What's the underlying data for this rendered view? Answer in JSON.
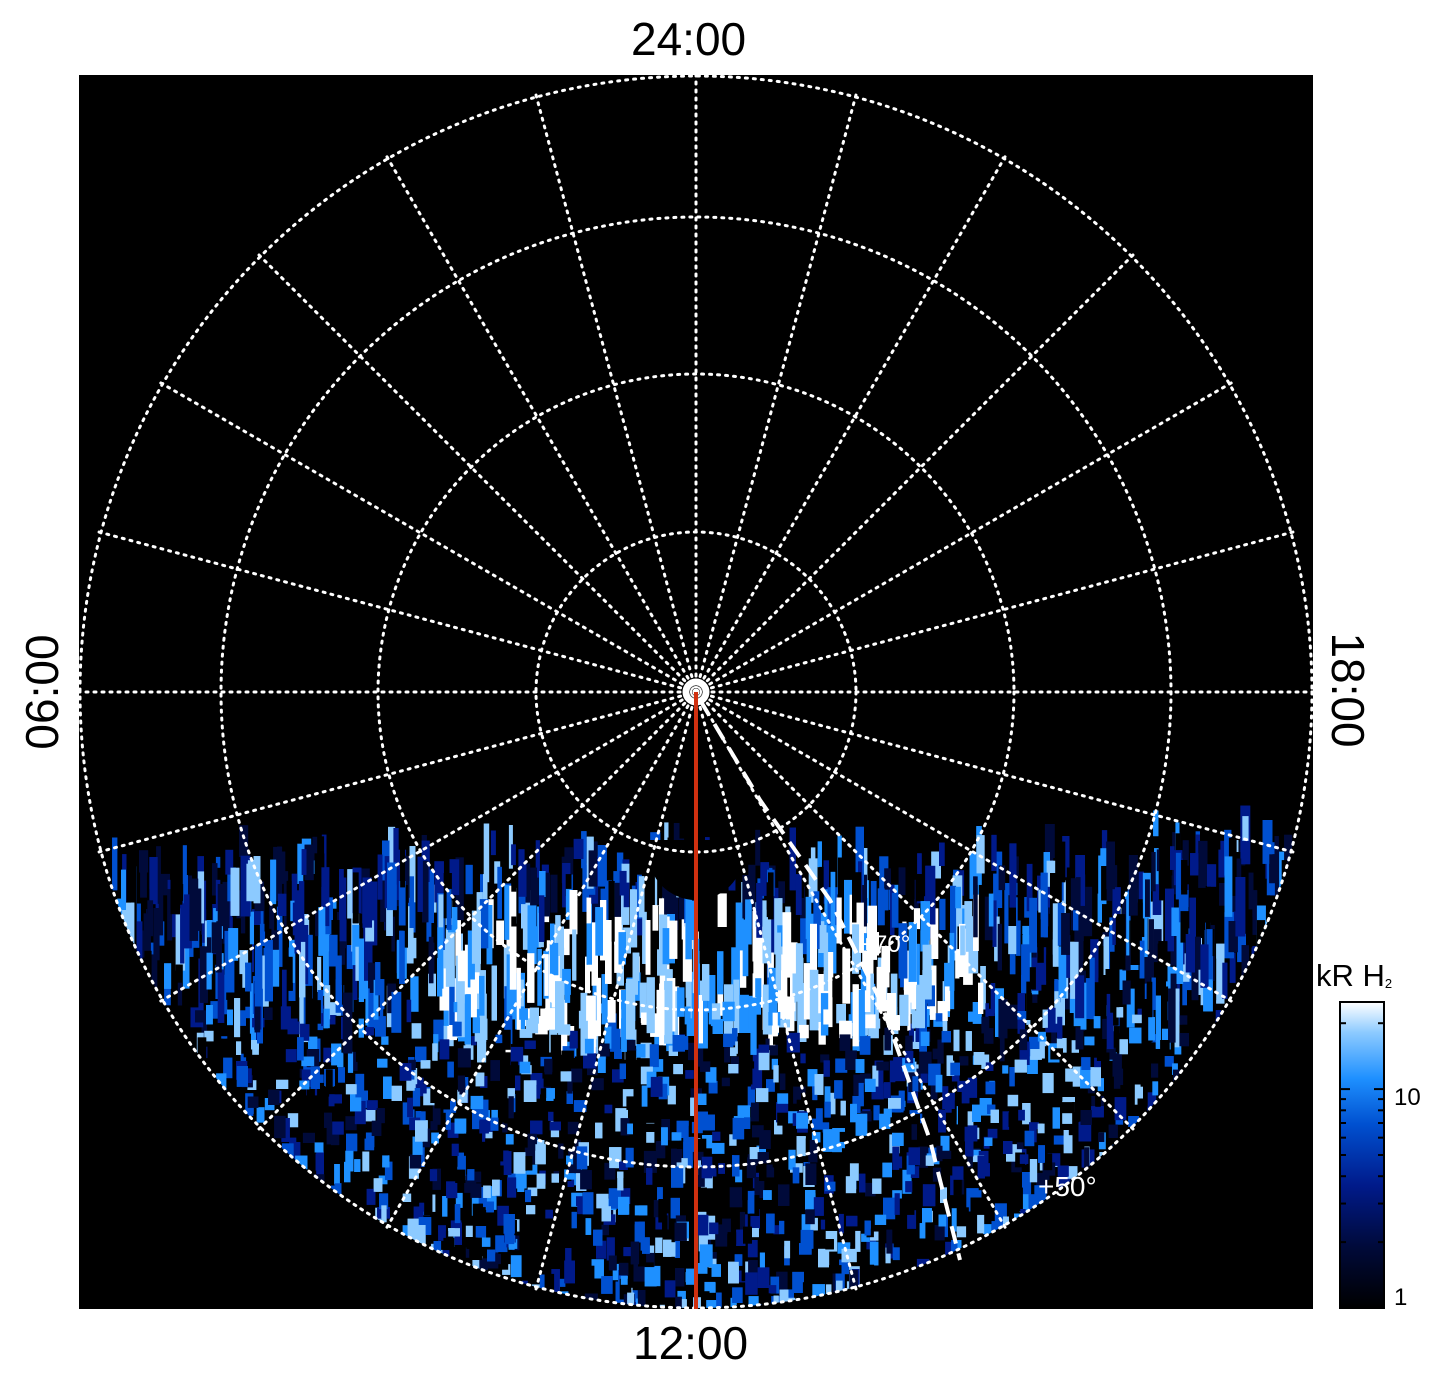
{
  "chart_data": {
    "type": "heatmap",
    "projection": "polar",
    "description_axes": "local time around pole, latitude rings",
    "local_time_labels": {
      "top": "24:00",
      "bottom": "12:00",
      "left": "06:00",
      "right": "18:00"
    },
    "latitude_labels": [
      "+70°",
      "+50°"
    ],
    "colorbar": {
      "title": "kR H",
      "title_subscript": "2",
      "scale": "log",
      "range": [
        1,
        25
      ],
      "ticks": [
        {
          "value": 10,
          "label": "10"
        },
        {
          "value": 1,
          "label": "1"
        }
      ],
      "colors": [
        "#000000",
        "#000a3a",
        "#001a8a",
        "#0050d0",
        "#1e90ff",
        "#8ccaff",
        "#ffffff"
      ]
    },
    "grid": true,
    "meridian_color": "#d03010"
  }
}
